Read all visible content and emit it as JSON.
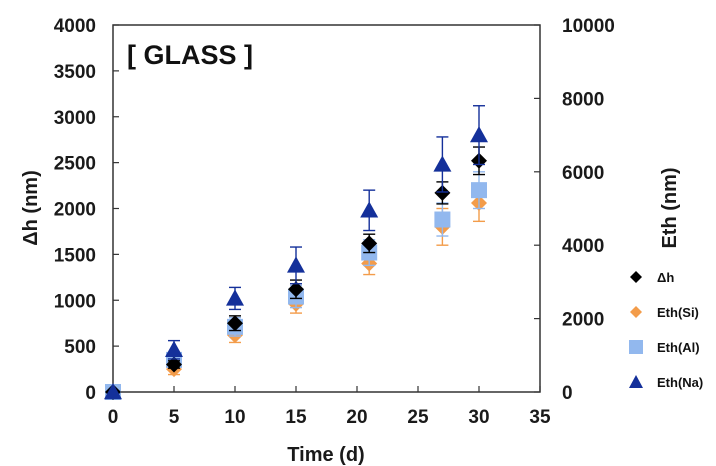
{
  "chart_data": {
    "type": "scatter",
    "annotation": "[ GLASS ]",
    "xlabel": "Time (d)",
    "ylabel_left": "Δh (nm)",
    "ylabel_right": "Eth (nm)",
    "xlim": [
      0,
      35
    ],
    "ylim_left": [
      0,
      4000
    ],
    "ylim_right": [
      0,
      10000
    ],
    "x_ticks": [
      0,
      5,
      10,
      15,
      20,
      25,
      30,
      35
    ],
    "y_left_ticks": [
      0,
      500,
      1000,
      1500,
      2000,
      2500,
      3000,
      3500,
      4000
    ],
    "y_right_ticks": [
      0,
      2000,
      4000,
      6000,
      8000,
      10000
    ],
    "legend_position": "right",
    "grid": false,
    "series": [
      {
        "name": "Δh",
        "marker": "diamond",
        "color": "#000000",
        "axis": "left",
        "x": [
          0,
          5,
          10,
          15,
          21,
          27,
          30
        ],
        "y": [
          0,
          300,
          750,
          1120,
          1620,
          2170,
          2520
        ],
        "err": [
          0,
          40,
          80,
          100,
          100,
          120,
          150
        ]
      },
      {
        "name": "Eth(Si)",
        "marker": "diamond",
        "color": "#F39C4A",
        "axis": "right",
        "x": [
          0,
          5,
          10,
          15,
          21,
          27,
          30
        ],
        "y": [
          0,
          625,
          1550,
          2400,
          3500,
          4500,
          5150
        ],
        "err": [
          0,
          150,
          200,
          250,
          300,
          500,
          500
        ]
      },
      {
        "name": "Eth(Al)",
        "marker": "square",
        "color": "#92B8EE",
        "axis": "right",
        "x": [
          0,
          5,
          10,
          15,
          21,
          27,
          30
        ],
        "y": [
          0,
          875,
          1775,
          2600,
          3800,
          4700,
          5500
        ],
        "err": [
          0,
          150,
          250,
          300,
          350,
          450,
          500
        ]
      },
      {
        "name": "Eth(Na)",
        "marker": "triangle",
        "color": "#14309A",
        "axis": "right",
        "x": [
          0,
          5,
          10,
          15,
          21,
          27,
          30
        ],
        "y": [
          0,
          1150,
          2550,
          3450,
          4950,
          6200,
          7000
        ],
        "err": [
          0,
          250,
          300,
          500,
          550,
          750,
          800
        ]
      }
    ]
  }
}
